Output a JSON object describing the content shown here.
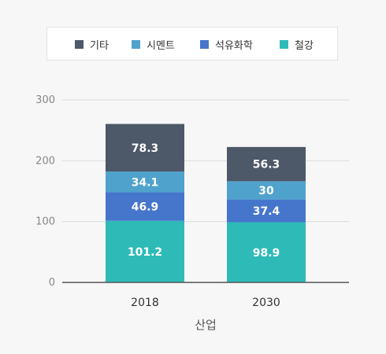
{
  "chart_data": {
    "type": "bar",
    "stacked": true,
    "categories": [
      "2018",
      "2030"
    ],
    "xlabel": "산업",
    "ylabel": "",
    "ylim": [
      0,
      300
    ],
    "yticks": [
      "0",
      "100",
      "200",
      "300"
    ],
    "grid": true,
    "legend_position": "top",
    "series": [
      {
        "name": "철강",
        "values": [
          101.2,
          98.9
        ],
        "labels": [
          "101.2",
          "98.9"
        ],
        "color": "#2ebbb8"
      },
      {
        "name": "석유화학",
        "values": [
          46.9,
          37.4
        ],
        "labels": [
          "46.9",
          "37.4"
        ],
        "color": "#4675cc"
      },
      {
        "name": "시멘트",
        "values": [
          34.1,
          30
        ],
        "labels": [
          "34.1",
          "30"
        ],
        "color": "#4fa2cc"
      },
      {
        "name": "기타",
        "values": [
          78.3,
          56.3
        ],
        "labels": [
          "78.3",
          "56.3"
        ],
        "color": "#4d5868"
      }
    ],
    "legend_order": [
      "기타",
      "시멘트",
      "석유화학",
      "철강"
    ]
  }
}
